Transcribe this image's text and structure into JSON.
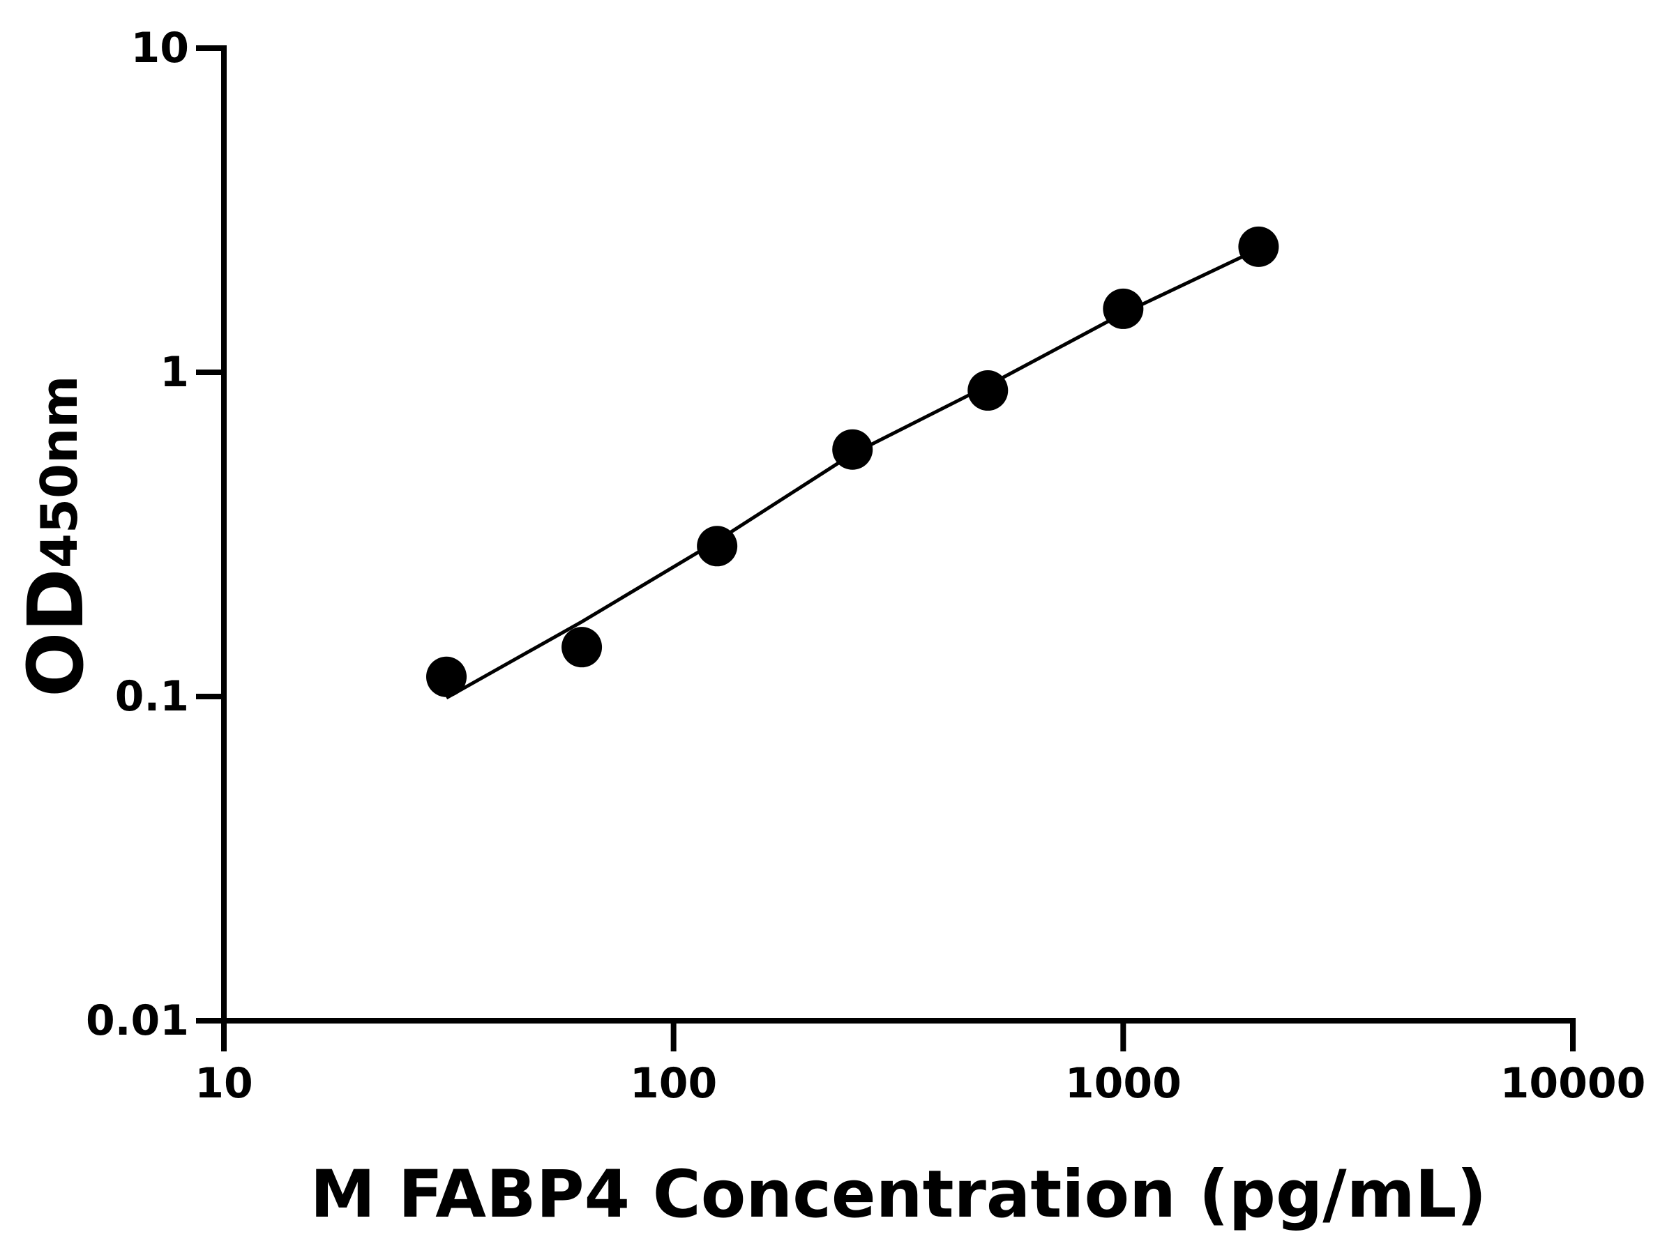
{
  "chart_data": {
    "type": "scatter",
    "x_label": "M FABP4 Concentration (pg/mL)",
    "y_label": "OD",
    "y_label_sub": "450nm",
    "xscale": "log",
    "yscale": "log",
    "xlim": [
      10,
      10000
    ],
    "ylim": [
      0.01,
      10
    ],
    "xticks": [
      10,
      100,
      1000,
      10000
    ],
    "yticks": [
      0.01,
      0.1,
      1,
      10
    ],
    "color": "#000000",
    "x": [
      31.25,
      62.5,
      125,
      250,
      500,
      1000,
      2000
    ],
    "values": [
      0.115,
      0.142,
      0.291,
      0.578,
      0.879,
      1.57,
      2.44
    ],
    "curve": {
      "x": [
        31.25,
        62.5,
        125,
        250,
        500,
        1000,
        2000
      ],
      "values": [
        0.099,
        0.17,
        0.302,
        0.56,
        0.91,
        1.52,
        2.4
      ]
    }
  }
}
